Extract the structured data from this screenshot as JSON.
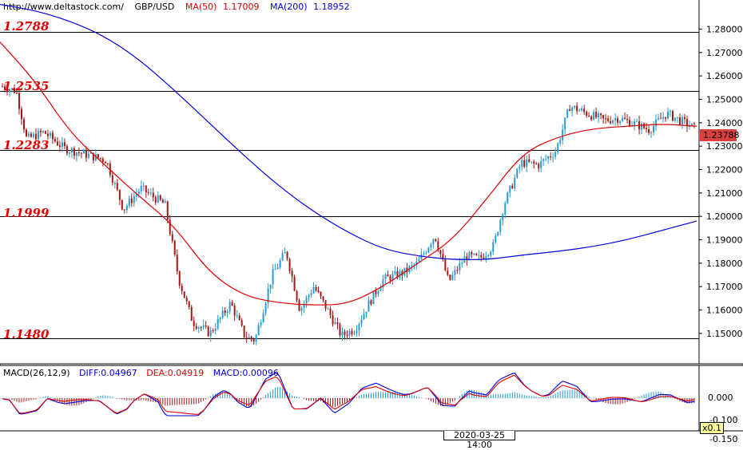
{
  "header": {
    "url": "http://www.deltastock.com/",
    "symbol": "GBP/USD",
    "ma50_label": "MA(50)",
    "ma50_value": "1.17009",
    "ma200_label": "MA(200)",
    "ma200_value": "1.18952"
  },
  "levels": [
    {
      "label": "1.2788",
      "value": 1.2788
    },
    {
      "label": "1.2535",
      "value": 1.2535
    },
    {
      "label": "1.2283",
      "value": 1.2283
    },
    {
      "label": "1.1999",
      "value": 1.1999
    },
    {
      "label": "1.1480",
      "value": 1.148
    }
  ],
  "price_axis": {
    "ticks": [
      "1.28000",
      "1.27000",
      "1.26000",
      "1.25000",
      "1.24000",
      "1.23000",
      "1.22000",
      "1.21000",
      "1.20000",
      "1.19000",
      "1.18000",
      "1.17000",
      "1.16000",
      "1.15000"
    ],
    "current_price": "1.23788"
  },
  "macd": {
    "title": "MACD(26,12,9)",
    "diff": "DIFF:0.04967",
    "dea": "DEA:0.04919",
    "macd": "MACD:0.00096",
    "axis_ticks": [
      "0.000",
      "-0.100"
    ],
    "bottom_tick": "-0.150",
    "scale_badge": "x0.1"
  },
  "time_axis": {
    "crosshair_time": "2020-03-25 14:00"
  },
  "colors": {
    "ma50": "#e00000",
    "ma200": "#0000e0",
    "bull": "#2a9bd0",
    "bear": "#a01818",
    "level": "#e00000",
    "current_price_bg": "#d94040"
  },
  "chart_data": {
    "type": "line",
    "title": "GBP/USD",
    "ylim": [
      1.143,
      1.295
    ],
    "series": [
      {
        "name": "MA(50)",
        "x": [
          0,
          0.05,
          0.1,
          0.15,
          0.2,
          0.25,
          0.3,
          0.35,
          0.4,
          0.45,
          0.5,
          0.55,
          0.6,
          0.65,
          0.7,
          0.75,
          0.8,
          0.85,
          0.9,
          0.95,
          1.0
        ],
        "values": [
          1.2745,
          1.258,
          1.236,
          1.222,
          1.2085,
          1.196,
          1.176,
          1.166,
          1.163,
          1.162,
          1.1625,
          1.17,
          1.18,
          1.19,
          1.208,
          1.227,
          1.234,
          1.2375,
          1.2385,
          1.2395,
          1.2385
        ]
      },
      {
        "name": "MA(200)",
        "x": [
          0,
          0.05,
          0.1,
          0.15,
          0.2,
          0.25,
          0.3,
          0.35,
          0.4,
          0.45,
          0.5,
          0.55,
          0.6,
          0.65,
          0.7,
          0.75,
          0.8,
          0.85,
          0.9,
          0.95,
          1.0
        ],
        "values": [
          1.2905,
          1.288,
          1.2835,
          1.277,
          1.267,
          1.254,
          1.24,
          1.226,
          1.213,
          1.202,
          1.193,
          1.186,
          1.183,
          1.1815,
          1.1815,
          1.1835,
          1.185,
          1.187,
          1.19,
          1.194,
          1.198
        ]
      }
    ]
  }
}
